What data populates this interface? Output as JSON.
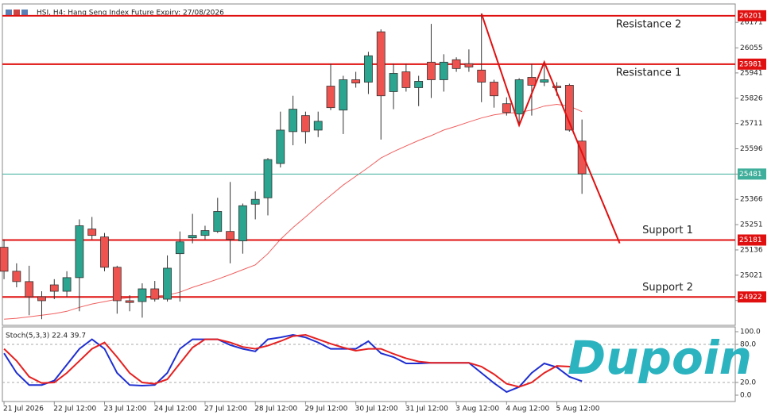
{
  "chart_data": {
    "type": "candlestick",
    "title": "HSI, H4: Hang Seng Index Future Expiry: 27/08/2026",
    "ylim": [
      24793,
      26251
    ],
    "yticks": [
      26171,
      26055,
      25941,
      25826,
      25711,
      25596,
      25481,
      25366,
      25251,
      25136,
      25021,
      24906
    ],
    "xlim": [
      -0.32,
      58.2
    ],
    "xticks": [
      {
        "value": 0,
        "label": "21 Jul 2026"
      },
      {
        "value": 4,
        "label": "22 Jul 12:00"
      },
      {
        "value": 8,
        "label": "23 Jul 12:00"
      },
      {
        "value": 12,
        "label": "24 Jul 12:00"
      },
      {
        "value": 16,
        "label": "27 Jul 12:00"
      },
      {
        "value": 20,
        "label": "28 Jul 12:00"
      },
      {
        "value": 24,
        "label": "29 Jul 12:00"
      },
      {
        "value": 28,
        "label": "30 Jul 12:00"
      },
      {
        "value": 32,
        "label": "31 Jul 12:00"
      },
      {
        "value": 36,
        "label": "3 Aug 12:00"
      },
      {
        "value": 40,
        "label": "4 Aug 12:00"
      },
      {
        "value": 44,
        "label": "5 Aug 12:00"
      }
    ],
    "up_color": "#2ba58f",
    "down_color": "#ef5350",
    "open": [
      25148,
      25039,
      24992,
      24923,
      24977,
      24948,
      25010,
      25231,
      25195,
      25057,
      24905,
      24901,
      24959,
      24912,
      25119,
      25191,
      25202,
      25220,
      25220,
      25177,
      25344,
      25373,
      25529,
      25674,
      25747,
      25681,
      25881,
      25772,
      25910,
      25899,
      26128,
      25856,
      25946,
      25874,
      25990,
      25910,
      26001,
      25983,
      25954,
      25899,
      25801,
      25754,
      25921,
      25899,
      25881,
      25885,
      25631
    ],
    "high": [
      25184,
      25075,
      25064,
      24948,
      25003,
      25039,
      25275,
      25286,
      25213,
      25064,
      24930,
      24984,
      24995,
      25111,
      25220,
      25300,
      25246,
      25373,
      25445,
      25347,
      25402,
      25554,
      25765,
      25837,
      25765,
      25765,
      25983,
      25928,
      25946,
      26037,
      26139,
      25983,
      25983,
      25928,
      26164,
      26026,
      26012,
      26048,
      26211,
      25910,
      25830,
      25917,
      25983,
      25990,
      25899,
      25892,
      25729
    ],
    "low": [
      25003,
      24966,
      24839,
      24821,
      24912,
      24923,
      24857,
      25184,
      25039,
      24846,
      24857,
      24828,
      24901,
      24901,
      24901,
      25166,
      25184,
      25213,
      25075,
      25119,
      25275,
      25293,
      25511,
      25612,
      25620,
      25649,
      25772,
      25663,
      25874,
      25845,
      25638,
      25776,
      25856,
      25790,
      25827,
      25856,
      25946,
      25946,
      25808,
      25783,
      25747,
      25710,
      25747,
      25881,
      25837,
      25674,
      25391
    ],
    "close": [
      25039,
      24992,
      24923,
      24905,
      24948,
      25010,
      25246,
      25202,
      25057,
      24905,
      24897,
      24959,
      24912,
      25053,
      25173,
      25202,
      25224,
      25311,
      25184,
      25337,
      25366,
      25547,
      25681,
      25776,
      25674,
      25721,
      25783,
      25910,
      25895,
      26019,
      25837,
      25939,
      25874,
      25903,
      25910,
      25990,
      25961,
      25968,
      25899,
      25837,
      25761,
      25910,
      25885,
      25910,
      25874,
      25681,
      25482
    ],
    "ma": {
      "color": "#f06060",
      "values": [
        24821,
        24825,
        24832,
        24839,
        24846,
        24857,
        24875,
        24890,
        24901,
        24912,
        24919,
        24923,
        24926,
        24930,
        24944,
        24966,
        24984,
        25003,
        25024,
        25046,
        25068,
        25119,
        25184,
        25238,
        25286,
        25336,
        25384,
        25431,
        25471,
        25511,
        25554,
        25583,
        25609,
        25634,
        25656,
        25681,
        25699,
        25718,
        25736,
        25750,
        25758,
        25761,
        25772,
        25790,
        25798,
        25790,
        25765
      ]
    },
    "levels": [
      {
        "value": 26201,
        "label": "Resistance 2",
        "color": "#e01010"
      },
      {
        "value": 25981,
        "label": "Resistance 1",
        "color": "#e01010"
      },
      {
        "value": 25481,
        "color": "#3fae9a"
      },
      {
        "value": 25181,
        "label": "Support 1",
        "color": "#e01010"
      },
      {
        "value": 24922,
        "label": "Support 2",
        "color": "#e01010"
      }
    ],
    "trendline": {
      "color": "#e01010",
      "x": [
        38,
        41,
        43,
        49
      ],
      "y": [
        26211,
        25703,
        25990,
        25166
      ]
    },
    "indicator": {
      "label": "Stoch(5,3,3) 22.4 39.7",
      "ylim": [
        0,
        100
      ],
      "yticks": [
        {
          "value": 100,
          "label": "100.0"
        },
        {
          "value": 80,
          "label": "80.0"
        },
        {
          "value": 20,
          "label": "20.0"
        },
        {
          "value": 0,
          "label": "0.0"
        }
      ],
      "series": [
        {
          "color": "#1f2fd0",
          "values": [
            66,
            35,
            16,
            16,
            23,
            48,
            73,
            88,
            73,
            35,
            16,
            15,
            16,
            35,
            73,
            88,
            88,
            88,
            79,
            73,
            69,
            88,
            91,
            95,
            91,
            83,
            73,
            73,
            73,
            85,
            66,
            60,
            50,
            50,
            51,
            51,
            51,
            51,
            35,
            19,
            5,
            13,
            35,
            50,
            44,
            29,
            22
          ]
        },
        {
          "color": "#e52020",
          "values": [
            73,
            54,
            29,
            19,
            20,
            35,
            54,
            73,
            83,
            60,
            35,
            20,
            18,
            25,
            50,
            75,
            88,
            88,
            83,
            76,
            73,
            78,
            85,
            93,
            95,
            88,
            81,
            75,
            70,
            73,
            73,
            65,
            58,
            53,
            51,
            51,
            51,
            51,
            45,
            33,
            18,
            13,
            20,
            35,
            46,
            45,
            40
          ]
        }
      ]
    }
  },
  "logo": "Dupoin"
}
